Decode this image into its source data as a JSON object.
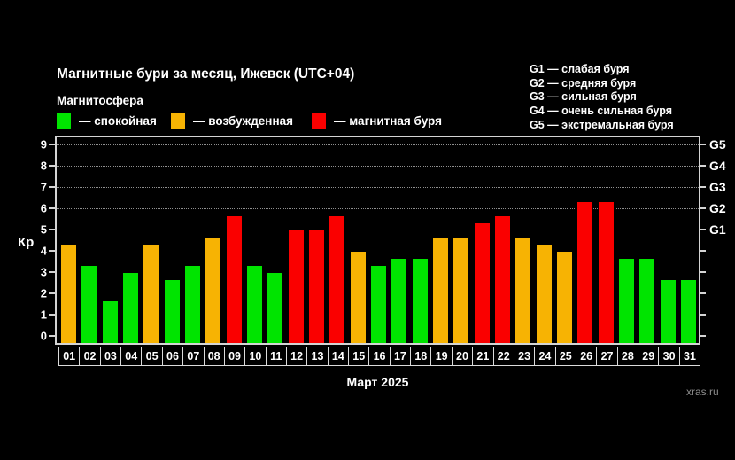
{
  "header": {
    "title": "Магнитные бури за месяц, Ижевск (UTC+04)",
    "subtitle": "Магнитосфера",
    "legend": [
      {
        "key": "quiet",
        "label": "— спокойная",
        "color": "#00e400"
      },
      {
        "key": "excited",
        "label": "— возбужденная",
        "color": "#f7b303"
      },
      {
        "key": "storm",
        "label": "— магнитная буря",
        "color": "#fa0000"
      }
    ],
    "g_scale_legend": [
      "G1 — слабая буря",
      "G2 — средняя буря",
      "G3 — сильная буря",
      "G4 — очень сильная буря",
      "G5 — экстремальная буря"
    ]
  },
  "chart_data": {
    "type": "bar",
    "title": "Магнитные бури за месяц, Ижевск (UTC+04)",
    "xlabel": "Март 2025",
    "ylabel": "Кр",
    "ylim": [
      0,
      9
    ],
    "yticks": [
      0,
      1,
      2,
      3,
      4,
      5,
      6,
      7,
      8,
      9
    ],
    "gridlines_at": [
      5,
      6,
      7,
      8,
      9
    ],
    "grid_style": "dotted",
    "legend_position": "top-left",
    "right_axis_labels": [
      {
        "value": 5,
        "label": "G1"
      },
      {
        "value": 6,
        "label": "G2"
      },
      {
        "value": 7,
        "label": "G3"
      },
      {
        "value": 8,
        "label": "G4"
      },
      {
        "value": 9,
        "label": "G5"
      }
    ],
    "categories": [
      "01",
      "02",
      "03",
      "04",
      "05",
      "06",
      "07",
      "08",
      "09",
      "10",
      "11",
      "12",
      "13",
      "14",
      "15",
      "16",
      "17",
      "18",
      "19",
      "20",
      "21",
      "22",
      "23",
      "24",
      "25",
      "26",
      "27",
      "28",
      "29",
      "30",
      "31"
    ],
    "values": [
      4.33,
      3.33,
      1.67,
      3.0,
      4.33,
      2.67,
      3.33,
      4.67,
      5.67,
      3.33,
      3.0,
      5.0,
      5.0,
      5.67,
      4.0,
      3.33,
      3.67,
      3.67,
      4.67,
      4.67,
      5.33,
      5.67,
      4.67,
      4.33,
      4.0,
      6.33,
      6.33,
      3.67,
      3.67,
      2.67,
      2.67
    ],
    "statuses": [
      "excited",
      "quiet",
      "quiet",
      "quiet",
      "excited",
      "quiet",
      "quiet",
      "excited",
      "storm",
      "quiet",
      "quiet",
      "storm",
      "storm",
      "storm",
      "excited",
      "quiet",
      "quiet",
      "quiet",
      "excited",
      "excited",
      "storm",
      "storm",
      "excited",
      "excited",
      "excited",
      "storm",
      "storm",
      "quiet",
      "quiet",
      "quiet",
      "quiet"
    ],
    "status_colors": {
      "quiet": "#00e400",
      "excited": "#f7b303",
      "storm": "#fa0000"
    }
  },
  "footer": {
    "watermark": "xras.ru"
  }
}
